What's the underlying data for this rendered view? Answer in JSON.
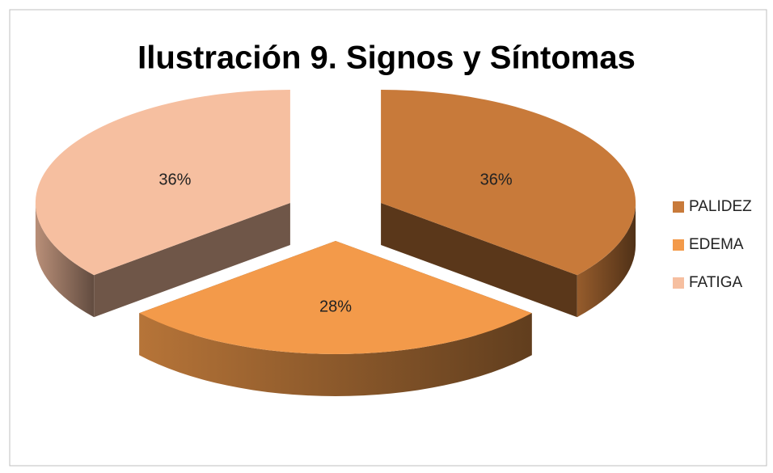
{
  "chart_data": {
    "type": "pie3d",
    "title": "Ilustración 9. Signos y Síntomas",
    "categories": [
      "PALIDEZ",
      "EDEMA",
      "FATIGA"
    ],
    "values": [
      36,
      28,
      36
    ],
    "value_labels": [
      "36%",
      "28%",
      "36%"
    ],
    "colors": [
      "#c87a3a",
      "#f39a4a",
      "#f6bfa0"
    ],
    "legend": "right"
  }
}
